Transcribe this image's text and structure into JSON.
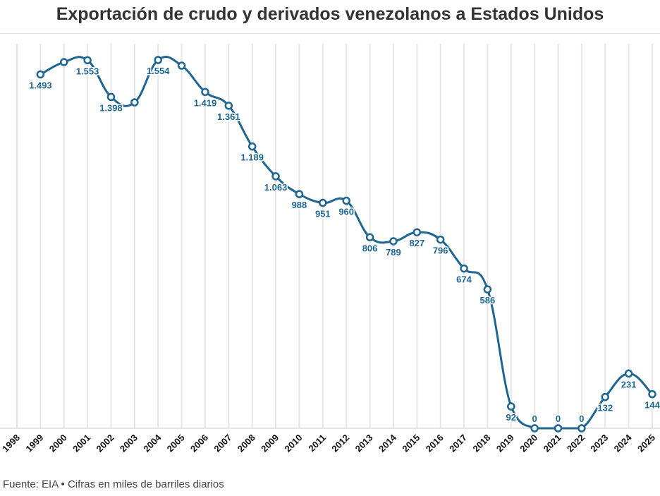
{
  "title": "Exportación de crudo y derivados venezolanos a Estados Unidos",
  "footer": "Fuente: EIA • Cifras en miles de barriles diarios",
  "chart_data": {
    "type": "line",
    "title": "Exportación de crudo y derivados venezolanos a Estados Unidos",
    "xlabel": "",
    "ylabel": "",
    "categories": [
      "1998",
      "1999",
      "2000",
      "2001",
      "2002",
      "2003",
      "2004",
      "2005",
      "2006",
      "2007",
      "2008",
      "2009",
      "2010",
      "2011",
      "2012",
      "2013",
      "2014",
      "2015",
      "2016",
      "2017",
      "2018",
      "2019",
      "2020",
      "2021",
      "2022",
      "2023",
      "2024",
      "2025"
    ],
    "values": [
      null,
      1493,
      1545,
      1553,
      1398,
      1375,
      1554,
      1530,
      1419,
      1361,
      1189,
      1063,
      988,
      951,
      960,
      806,
      789,
      827,
      796,
      674,
      586,
      92,
      0,
      0,
      0,
      132,
      231,
      144
    ],
    "data_labels": [
      null,
      "1.493",
      null,
      "1.553",
      "1.398",
      null,
      "1.554",
      null,
      "1.419",
      "1.361",
      "1.189",
      "1.063",
      "988",
      "951",
      "960",
      "806",
      "789",
      "827",
      "796",
      "674",
      "586",
      "92",
      "0",
      "0",
      "0",
      "132",
      "231",
      "144"
    ],
    "ylim": [
      0,
      1554
    ],
    "grid": "vertical",
    "color": "#1f6592",
    "gridline_color": "#e6e6e6",
    "smooth": true
  }
}
